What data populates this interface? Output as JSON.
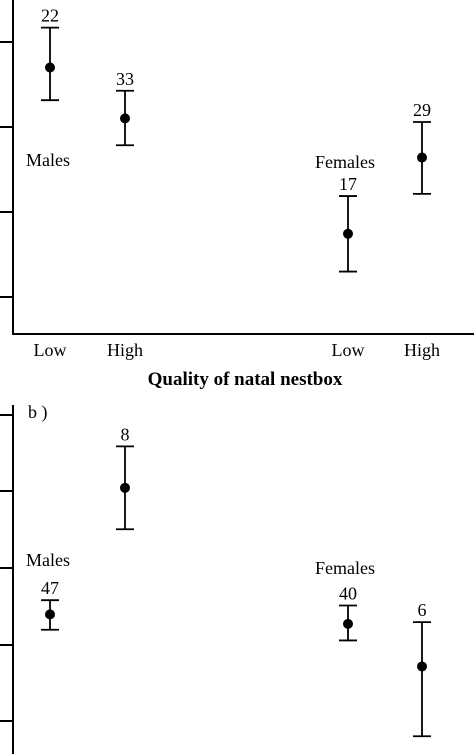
{
  "x_axis_title": "Quality of natal nestbox",
  "chart_data": [
    {
      "type": "scatter",
      "panel_label": "",
      "categories": [
        "Low",
        "High",
        "Low",
        "High"
      ],
      "series": [
        {
          "name": "Males",
          "points": [
            {
              "x": "Low",
              "mean": 3.67,
              "lower": 3.22,
              "upper": 4.22,
              "n": "22"
            },
            {
              "x": "High",
              "mean": 2.97,
              "lower": 2.6,
              "upper": 3.35,
              "n": "33"
            }
          ]
        },
        {
          "name": "Females",
          "points": [
            {
              "x": "Low",
              "mean": 1.38,
              "lower": 0.86,
              "upper": 1.9,
              "n": "17"
            },
            {
              "x": "High",
              "mean": 2.43,
              "lower": 1.93,
              "upper": 2.92,
              "n": "29"
            }
          ]
        }
      ],
      "ylim": [
        0,
        4.6
      ]
    },
    {
      "type": "scatter",
      "panel_label": "b )",
      "categories": [
        "Low",
        "High",
        "Low",
        "High"
      ],
      "series": [
        {
          "name": "Males",
          "points": [
            {
              "x": "Low",
              "mean": 2.36,
              "lower": 2.1,
              "upper": 2.6,
              "n": "47"
            },
            {
              "x": "High",
              "mean": 4.5,
              "lower": 3.8,
              "upper": 5.2,
              "n": "8"
            }
          ]
        },
        {
          "name": "Females",
          "points": [
            {
              "x": "Low",
              "mean": 2.2,
              "lower": 1.92,
              "upper": 2.51,
              "n": "40"
            },
            {
              "x": "High",
              "mean": 1.48,
              "lower": 0.3,
              "upper": 2.23,
              "n": "6"
            }
          ]
        }
      ],
      "ylim": [
        0,
        5.9
      ]
    }
  ]
}
